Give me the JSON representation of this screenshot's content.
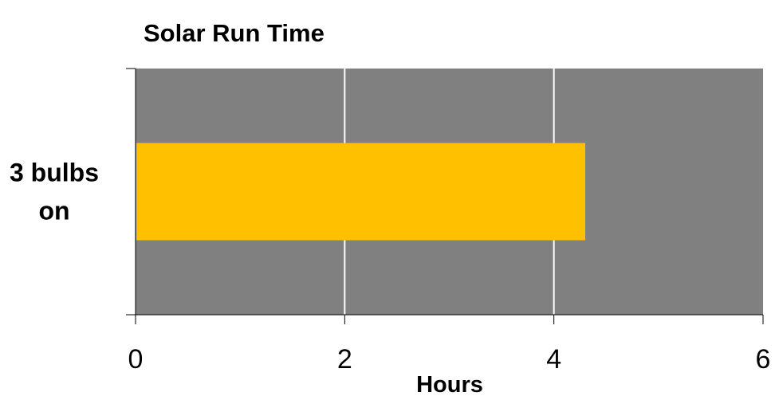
{
  "chart_data": {
    "type": "bar",
    "orientation": "horizontal",
    "title": "Solar Run Time",
    "categories": [
      "3 bulbs on"
    ],
    "category_label_lines": [
      [
        "3 bulbs",
        "on"
      ]
    ],
    "values": [
      4.3
    ],
    "xlabel": "Hours",
    "ylabel": "",
    "xlim": [
      0,
      6
    ],
    "xticks": [
      0,
      2,
      4,
      6
    ],
    "xtick_labels": [
      "0",
      "2",
      "4",
      "6"
    ],
    "grid": "vertical",
    "legend": "none",
    "colors": {
      "plot_background": "#808080",
      "bar": "#FFC000",
      "gridline": "#FFFFFF",
      "axis": "#000000"
    }
  }
}
